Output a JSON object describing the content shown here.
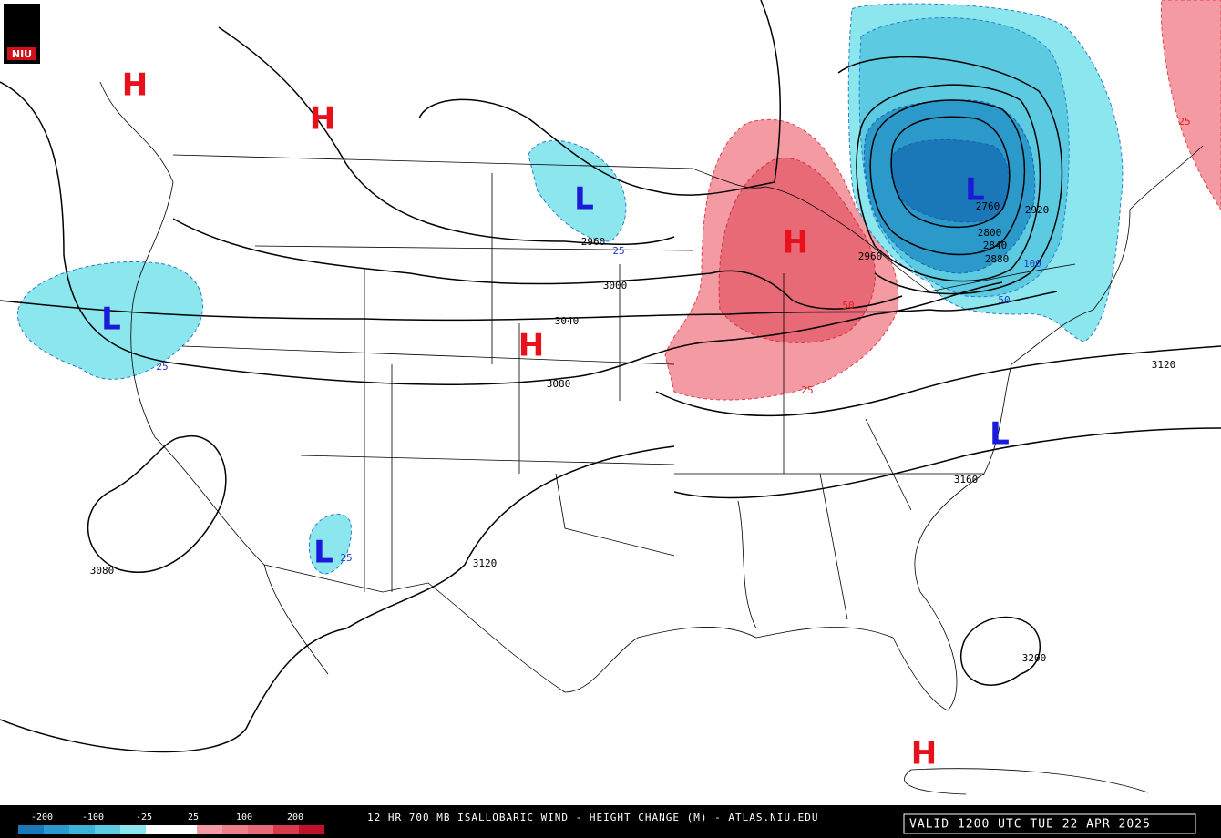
{
  "logo": "NIU",
  "pressure_centers": [
    "H",
    "H",
    "L",
    "H",
    "L",
    "L",
    "H",
    "L",
    "L",
    "H"
  ],
  "contour_labels": [
    "2960",
    "3000",
    "3040",
    "3080",
    "3120",
    "3160",
    "3080",
    "3120",
    "3200",
    "2760",
    "2920",
    "2800",
    "2840",
    "2880",
    "2960"
  ],
  "change_labels": [
    "25",
    "25",
    "25",
    "50",
    "25",
    "25",
    "50",
    "100"
  ],
  "legend": [
    "-200",
    "-100",
    "-25",
    "25",
    "100",
    "200"
  ],
  "footer": {
    "title": "12 HR 700 MB ISALLOBARIC WIND - HEIGHT CHANGE (M) - ATLAS.NIU.EDU",
    "valid": "VALID 1200 UTC TUE 22 APR 2025"
  }
}
